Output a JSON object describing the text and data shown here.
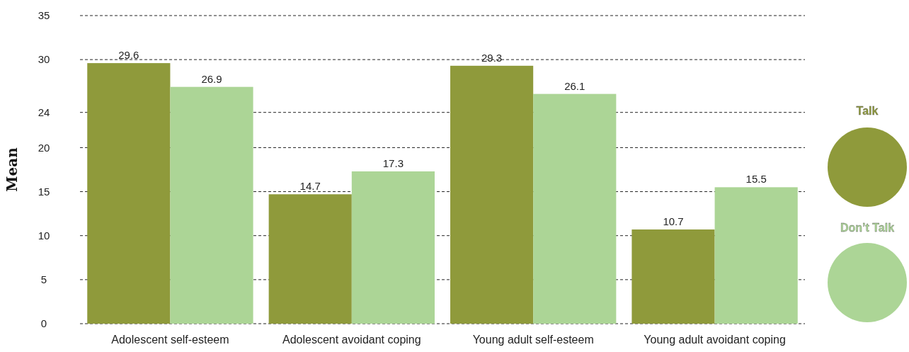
{
  "chart_data": {
    "type": "bar",
    "ylabel": "Mean",
    "categories": [
      "Adolescent self-esteem",
      "Adolescent avoidant coping",
      "Young adult self-esteem",
      "Young adult avoidant coping"
    ],
    "series": [
      {
        "name": "Talk",
        "color": "#8f9a3b",
        "values": [
          29.6,
          14.7,
          29.3,
          10.7
        ]
      },
      {
        "name": "Don’t Talk",
        "color": "#acd596",
        "values": [
          26.9,
          17.3,
          26.1,
          15.5
        ]
      }
    ],
    "ylim": [
      0,
      35
    ],
    "yticks": [
      0,
      5,
      10,
      15,
      20,
      24,
      30,
      35
    ],
    "grid": "y",
    "legend": "right",
    "data_labels": true
  }
}
